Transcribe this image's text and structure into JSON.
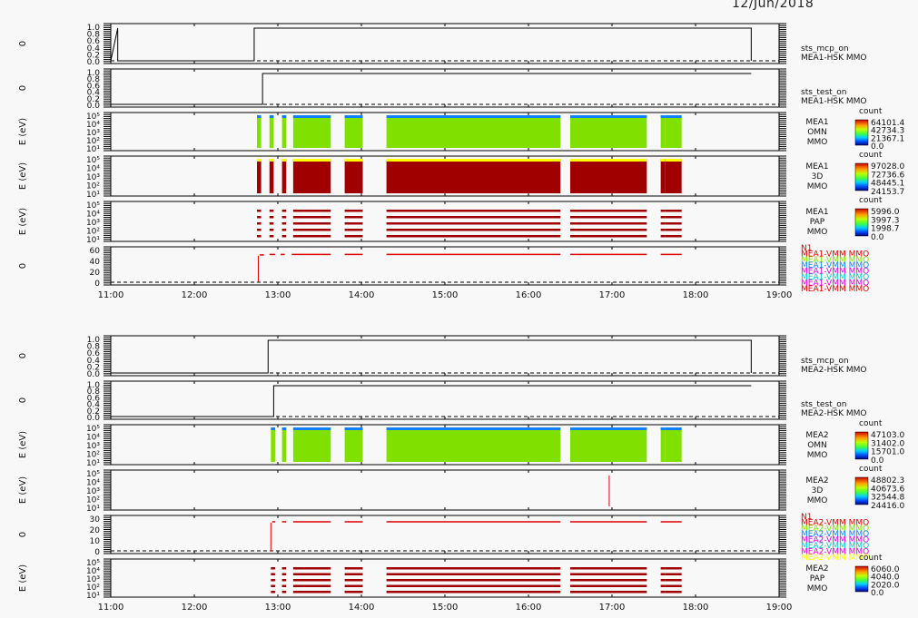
{
  "page": {
    "date": "12/Jun/2018"
  },
  "chart_data": {
    "type": "line",
    "x_range": [
      "11:00",
      "19:00"
    ],
    "x_ticks": [
      "11:00",
      "12:00",
      "13:00",
      "14:00",
      "15:00",
      "16:00",
      "17:00",
      "18:00",
      "19:00"
    ],
    "colors": {
      "line": "#000000",
      "dark_red": "#a00000",
      "red": "#e00000",
      "green": "#80e000",
      "blue": "#1080ff",
      "yellow": "#ffff00",
      "magenta": "#e000e0",
      "cyan": "#00c8c8"
    },
    "groups": [
      {
        "instrument": "MEA1",
        "panels": [
          {
            "kind": "line",
            "ylabel": "0",
            "yticks": [
              "0.0",
              "0.2",
              "0.4",
              "0.6",
              "0.8",
              "1.0"
            ],
            "ylim": [
              0,
              1
            ],
            "labels": [
              "sts_mcp_on",
              "MEA1-HSK MMO"
            ],
            "steps": [
              [
                "11:00",
                0
              ],
              [
                "11:05",
                1
              ],
              [
                "11:05",
                0
              ],
              [
                "12:43",
                0
              ],
              [
                "12:43",
                1
              ],
              [
                "18:40",
                1
              ],
              [
                "18:40",
                0
              ]
            ]
          },
          {
            "kind": "line",
            "ylabel": "0",
            "yticks": [
              "0.0",
              "0.2",
              "0.4",
              "0.6",
              "0.8",
              "1.0"
            ],
            "ylim": [
              0,
              1
            ],
            "labels": [
              "sts_test_on",
              "MEA1-HSK MMO"
            ],
            "steps": [
              [
                "11:00",
                0
              ],
              [
                "12:49",
                0
              ],
              [
                "12:49",
                1
              ],
              [
                "18:40",
                1
              ]
            ]
          },
          {
            "kind": "spectrogram",
            "ylabel": "E (eV)",
            "yticks": [
              "10¹",
              "10²",
              "10³",
              "10⁴",
              "10⁵"
            ],
            "labels": [
              "MEA1",
              "OMN",
              "MMO"
            ],
            "colorbar": {
              "title": "count",
              "ticks": [
                "64101.4",
                "42734.3",
                "21367.1",
                "0.0"
              ]
            },
            "fill": "green",
            "top_band": "blue",
            "blocks": [
              [
                "12:45",
                "12:48"
              ],
              [
                "12:54",
                "12:57"
              ],
              [
                "13:03",
                "13:06"
              ],
              [
                "13:11",
                "13:38"
              ],
              [
                "13:48",
                "14:01"
              ],
              [
                "14:18",
                "16:23"
              ],
              [
                "16:30",
                "17:25"
              ],
              [
                "17:35",
                "17:38"
              ],
              [
                "17:38",
                "17:50"
              ]
            ]
          },
          {
            "kind": "spectrogram",
            "ylabel": "E (eV)",
            "yticks": [
              "10¹",
              "10²",
              "10³",
              "10⁴",
              "10⁵"
            ],
            "labels": [
              "MEA1",
              "3D",
              "MMO"
            ],
            "colorbar": {
              "title": "count",
              "ticks": [
                "97028.0",
                "72736.6",
                "48445.1",
                "24153.7"
              ]
            },
            "fill": "dark_red",
            "top_band": "yellow",
            "blocks": [
              [
                "12:45",
                "12:48"
              ],
              [
                "12:54",
                "12:57"
              ],
              [
                "13:03",
                "13:06"
              ],
              [
                "13:11",
                "13:38"
              ],
              [
                "13:48",
                "14:01"
              ],
              [
                "14:18",
                "16:23"
              ],
              [
                "16:30",
                "17:25"
              ],
              [
                "17:35",
                "17:38"
              ],
              [
                "17:38",
                "17:50"
              ]
            ]
          },
          {
            "kind": "pitch",
            "ylabel": "E (eV)",
            "yticks": [
              "10¹",
              "10²",
              "10³",
              "10⁴",
              "10⁵"
            ],
            "labels": [
              "MEA1",
              "PAP",
              "MMO"
            ],
            "colorbar": {
              "title": "count",
              "ticks": [
                "5996.0",
                "3997.3",
                "1998.7",
                "0.0"
              ]
            },
            "blocks": [
              [
                "12:45",
                "12:48"
              ],
              [
                "12:54",
                "12:57"
              ],
              [
                "13:03",
                "13:06"
              ],
              [
                "13:11",
                "13:38"
              ],
              [
                "13:48",
                "14:01"
              ],
              [
                "14:18",
                "16:23"
              ],
              [
                "16:30",
                "17:25"
              ],
              [
                "17:35",
                "17:38"
              ],
              [
                "17:38",
                "17:50"
              ]
            ]
          },
          {
            "kind": "counter",
            "ylabel": "0",
            "yticks": [
              "0",
              "20",
              "40",
              "60"
            ],
            "ylim": [
              0,
              70
            ],
            "labels": [
              "N1",
              "MEA1-VMM MMO",
              "MEA1-VMM MMO",
              "MEA1-VMM MMO",
              "MEA1-VMM MMO",
              "MEA1-VMM MMO",
              "MEA1-VMM MMO",
              "MEA1-VMM MMO"
            ],
            "label_colors": [
              "red",
              "red",
              "green",
              "blue",
              "magenta",
              "cyan",
              "magenta",
              "red"
            ],
            "spike": [
              "12:46",
              60
            ],
            "segments": [
              [
                "12:47",
                "12:50",
                62
              ],
              [
                "12:54",
                "12:58",
                63
              ],
              [
                "13:02",
                "13:05",
                63
              ],
              [
                "13:10",
                "13:38",
                63
              ],
              [
                "13:48",
                "14:01",
                63
              ],
              [
                "14:18",
                "16:23",
                63
              ],
              [
                "16:30",
                "17:25",
                63
              ],
              [
                "17:35",
                "17:50",
                63
              ]
            ]
          }
        ]
      },
      {
        "instrument": "MEA2",
        "panels": [
          {
            "kind": "line",
            "ylabel": "0",
            "yticks": [
              "0.0",
              "0.2",
              "0.4",
              "0.6",
              "0.8",
              "1.0"
            ],
            "ylim": [
              0,
              1
            ],
            "labels": [
              "sts_mcp_on",
              "MEA2-HSK MMO"
            ],
            "steps": [
              [
                "11:00",
                0
              ],
              [
                "12:53",
                0
              ],
              [
                "12:53",
                1
              ],
              [
                "18:40",
                1
              ],
              [
                "18:40",
                0
              ]
            ]
          },
          {
            "kind": "line",
            "ylabel": "0",
            "yticks": [
              "0.0",
              "0.2",
              "0.4",
              "0.6",
              "0.8",
              "1.0"
            ],
            "ylim": [
              0,
              1
            ],
            "labels": [
              "sts_test_on",
              "MEA2-HSK MMO"
            ],
            "steps": [
              [
                "11:00",
                0
              ],
              [
                "12:57",
                0
              ],
              [
                "12:57",
                1
              ],
              [
                "18:40",
                1
              ]
            ]
          },
          {
            "kind": "spectrogram",
            "ylabel": "E (eV)",
            "yticks": [
              "10¹",
              "10²",
              "10³",
              "10⁴",
              "10⁵"
            ],
            "labels": [
              "MEA2",
              "OMN",
              "MMO"
            ],
            "colorbar": {
              "title": "count",
              "ticks": [
                "47103.0",
                "31402.0",
                "15701.0",
                "0.0"
              ]
            },
            "fill": "green",
            "top_band": "blue",
            "blocks": [
              [
                "12:55",
                "12:58"
              ],
              [
                "13:03",
                "13:06"
              ],
              [
                "13:11",
                "13:38"
              ],
              [
                "13:48",
                "14:01"
              ],
              [
                "14:18",
                "16:23"
              ],
              [
                "16:30",
                "17:25"
              ],
              [
                "17:35",
                "17:38"
              ],
              [
                "17:38",
                "17:50"
              ]
            ]
          },
          {
            "kind": "spike_only",
            "ylabel": "E (eV)",
            "yticks": [
              "10¹",
              "10²",
              "10³",
              "10⁴",
              "10⁵"
            ],
            "labels": [
              "MEA2",
              "3D",
              "MMO"
            ],
            "colorbar": {
              "title": "count",
              "ticks": [
                "48802.3",
                "40673.6",
                "32544.8",
                "24416.0"
              ]
            },
            "spike": "16:58"
          },
          {
            "kind": "counter",
            "ylabel": "0",
            "yticks": [
              "0",
              "10",
              "20",
              "30"
            ],
            "ylim": [
              0,
              35
            ],
            "labels": [
              "N1",
              "MEA2-VMM MMO",
              "MEA2-VMM MMO",
              "MEA2-VMM MMO",
              "MEA2-VMM MMO",
              "MEA2-VMM MMO",
              "MEA2-VMM MMO",
              "MEA2-VMM MMO"
            ],
            "label_colors": [
              "red",
              "red",
              "green",
              "blue",
              "magenta",
              "cyan",
              "magenta",
              "yellow"
            ],
            "spike": [
              "12:55",
              32
            ],
            "segments": [
              [
                "12:56",
                "12:58",
                33
              ],
              [
                "13:03",
                "13:06",
                33
              ],
              [
                "13:11",
                "13:38",
                33
              ],
              [
                "13:48",
                "14:01",
                33
              ],
              [
                "14:18",
                "16:23",
                33
              ],
              [
                "16:30",
                "17:25",
                33
              ],
              [
                "17:35",
                "17:50",
                33
              ]
            ]
          },
          {
            "kind": "pitch",
            "ylabel": "E (eV)",
            "yticks": [
              "10¹",
              "10²",
              "10³",
              "10⁴",
              "10⁵"
            ],
            "labels": [
              "MEA2",
              "PAP",
              "MMO"
            ],
            "colorbar": {
              "title": "count",
              "ticks": [
                "6060.0",
                "4040.0",
                "2020.0",
                "0.0"
              ]
            },
            "blocks": [
              [
                "12:55",
                "12:58"
              ],
              [
                "13:03",
                "13:06"
              ],
              [
                "13:11",
                "13:38"
              ],
              [
                "13:48",
                "14:01"
              ],
              [
                "14:18",
                "16:23"
              ],
              [
                "16:30",
                "17:25"
              ],
              [
                "17:35",
                "17:38"
              ],
              [
                "17:38",
                "17:50"
              ]
            ]
          }
        ]
      }
    ]
  }
}
